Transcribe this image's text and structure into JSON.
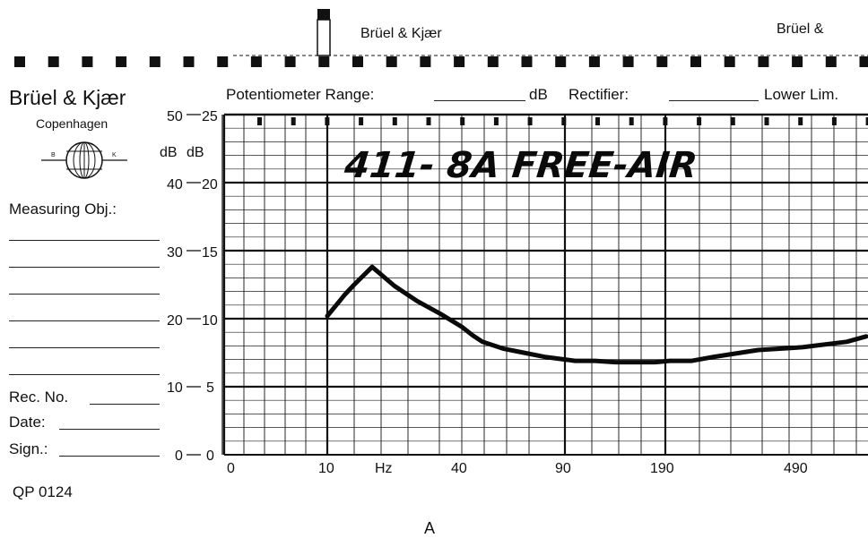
{
  "header": {
    "brand_repeat_1": "Brüel & Kjær",
    "brand_repeat_2": "Brüel &",
    "potentiometer_label": "Potentiometer Range:",
    "db_unit": "dB",
    "rectifier_label": "Rectifier:",
    "lower_lim_label": "Lower Lim."
  },
  "company": {
    "name": "Brüel & Kjær",
    "city": "Copenhagen",
    "logo_letters": [
      "B",
      "K"
    ]
  },
  "form": {
    "measuring_obj_label": "Measuring Obj.:",
    "rec_no_label": "Rec. No.",
    "date_label": "Date:",
    "sign_label": "Sign.:",
    "reference": "QP 0124"
  },
  "figure_label": "A",
  "colors": {
    "ink": "#111111",
    "grid": "#222222",
    "curve": "#0a0a0a",
    "paper": "#ffffff"
  },
  "chart_data": {
    "type": "line",
    "title": "411- 8A FREE-AIR",
    "y_axis_left": {
      "unit": "dB",
      "ticks": [
        0,
        10,
        20,
        30,
        40,
        50
      ]
    },
    "y_axis_right": {
      "unit": "dB",
      "ticks": [
        0,
        5,
        10,
        15,
        20,
        25
      ],
      "range": [
        0,
        25
      ]
    },
    "x_axis": {
      "unit": "Hz",
      "tick_labels": [
        "0",
        "10",
        "40",
        "90",
        "190",
        "490"
      ],
      "tick_values": [
        0,
        10,
        40,
        90,
        190,
        490
      ]
    },
    "grid": true,
    "series": [
      {
        "x": [
          10,
          12,
          14,
          16,
          20,
          25,
          30,
          35,
          40,
          45,
          50,
          60,
          70,
          80,
          90,
          100,
          120,
          140,
          160,
          180,
          200,
          250,
          300,
          400,
          500,
          600,
          700
        ],
        "values": [
          10.2,
          11.0,
          11.8,
          12.5,
          13.8,
          12.4,
          11.3,
          10.4,
          9.4,
          8.8,
          8.3,
          7.8,
          7.5,
          7.2,
          7.0,
          6.9,
          6.9,
          6.8,
          6.8,
          6.8,
          6.9,
          6.9,
          7.2,
          7.7,
          7.9,
          8.3,
          8.7
        ]
      }
    ]
  }
}
